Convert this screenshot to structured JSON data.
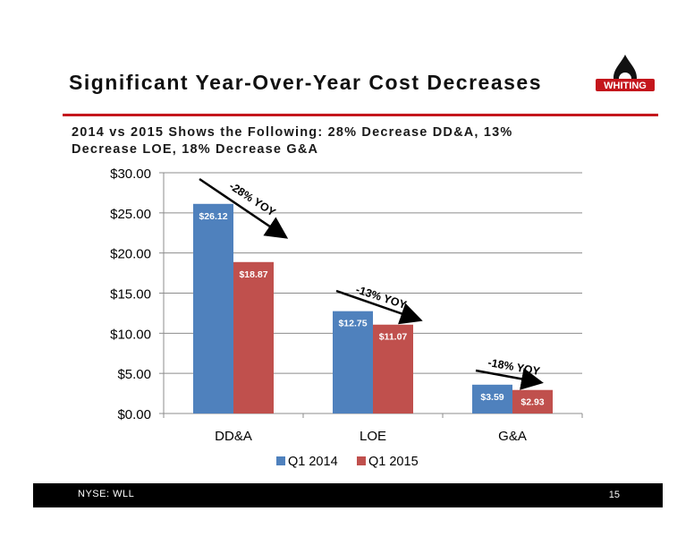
{
  "header": {
    "title": "Significant Year-Over-Year Cost Decreases",
    "subtitle": "2014 vs 2015 Shows the Following: 28% Decrease DD&A, 13% Decrease LOE, 18% Decrease G&A",
    "logo_text": "WHITING",
    "accent_color": "#c4161c"
  },
  "chart_data": {
    "type": "bar",
    "categories": [
      "DD&A",
      "LOE",
      "G&A"
    ],
    "series": [
      {
        "name": "Q1 2014",
        "values": [
          26.12,
          12.75,
          3.59
        ],
        "labels": [
          "$26.12",
          "$12.75",
          "$3.59"
        ],
        "color": "#4f81bd"
      },
      {
        "name": "Q1 2015",
        "values": [
          18.87,
          11.07,
          2.93
        ],
        "labels": [
          "$18.87",
          "$11.07",
          "$2.93"
        ],
        "color": "#c0504d"
      }
    ],
    "ylim": [
      0,
      30
    ],
    "yticks": [
      0,
      5,
      10,
      15,
      20,
      25,
      30
    ],
    "ytick_labels": [
      "$0.00",
      "$5.00",
      "$10.00",
      "$15.00",
      "$20.00",
      "$25.00",
      "$30.00"
    ],
    "grid": true,
    "legend_position": "bottom",
    "annotations": [
      "-28% YOY",
      "-13% YOY",
      "-18% YOY"
    ]
  },
  "footer": {
    "ticker": "NYSE:  WLL",
    "page_number": "15"
  }
}
